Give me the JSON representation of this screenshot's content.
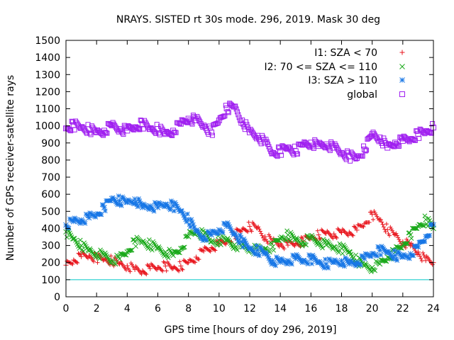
{
  "chart_data": {
    "type": "scatter",
    "title": "NRAYS. SISTED rt 30s mode. 296, 2019. Mask 30 deg",
    "xlabel": "GPS time [hours of doy 296, 2019]",
    "ylabel": "Number of GPS receiver-satellite rays",
    "xlim": [
      0,
      24
    ],
    "ylim": [
      0,
      1500
    ],
    "xticks": [
      0,
      2,
      4,
      6,
      8,
      10,
      12,
      14,
      16,
      18,
      20,
      22,
      24
    ],
    "yticks": [
      0,
      100,
      200,
      300,
      400,
      500,
      600,
      700,
      800,
      900,
      1000,
      1100,
      1200,
      1300,
      1400,
      1500
    ],
    "grid": false,
    "legend_position": "top-right",
    "reference_line": {
      "y": 100,
      "color": "#00c8c8"
    },
    "series": [
      {
        "name": "I1: SZA < 70",
        "color": "#e8141c",
        "marker": "plus",
        "x": [
          0,
          0.5,
          1,
          1.5,
          2,
          2.5,
          3,
          3.5,
          4,
          4.5,
          5,
          5.5,
          6,
          6.5,
          7,
          7.5,
          8,
          8.5,
          9,
          9.5,
          10,
          10.5,
          11,
          11.5,
          12,
          12.5,
          13,
          13.5,
          14,
          14.5,
          15,
          15.5,
          16,
          16.5,
          17,
          17.5,
          18,
          18.5,
          19,
          19.5,
          20,
          20.5,
          21,
          21.5,
          22,
          22.5,
          23,
          23.5,
          24
        ],
        "values": [
          185,
          215,
          235,
          240,
          228,
          218,
          212,
          192,
          182,
          160,
          152,
          165,
          172,
          180,
          168,
          180,
          200,
          232,
          268,
          288,
          308,
          322,
          362,
          392,
          412,
          402,
          352,
          322,
          312,
          302,
          312,
          325,
          345,
          362,
          372,
          368,
          375,
          378,
          390,
          428,
          482,
          452,
          392,
          362,
          322,
          298,
          262,
          212,
          200
        ]
      },
      {
        "name": "I2: 70 <= SZA <= 110",
        "color": "#1aa91a",
        "marker": "cross",
        "x": [
          0,
          0.5,
          1,
          1.5,
          2,
          2.5,
          3,
          3.5,
          4,
          4.5,
          5,
          5.5,
          6,
          6.5,
          7,
          7.5,
          8,
          8.5,
          9,
          9.5,
          10,
          10.5,
          11,
          11.5,
          12,
          12.5,
          13,
          13.5,
          14,
          14.5,
          15,
          15.5,
          16,
          16.5,
          17,
          17.5,
          18,
          18.5,
          19,
          19.5,
          20,
          20.5,
          21,
          21.5,
          22,
          22.5,
          23,
          23.5,
          24
        ],
        "values": [
          380,
          340,
          300,
          270,
          255,
          240,
          212,
          222,
          262,
          322,
          322,
          305,
          282,
          262,
          242,
          282,
          352,
          382,
          362,
          322,
          330,
          332,
          305,
          292,
          282,
          272,
          282,
          292,
          342,
          362,
          332,
          322,
          342,
          322,
          302,
          292,
          282,
          262,
          212,
          182,
          172,
          192,
          232,
          262,
          302,
          362,
          412,
          452,
          400
        ]
      },
      {
        "name": "I3: SZA > 110",
        "color": "#1877e6",
        "marker": "star",
        "x": [
          0,
          0.5,
          1,
          1.5,
          2,
          2.5,
          3,
          3.5,
          4,
          4.5,
          5,
          5.5,
          6,
          6.5,
          7,
          7.5,
          8,
          8.5,
          9,
          9.5,
          10,
          10.5,
          11,
          11.5,
          12,
          12.5,
          13,
          13.5,
          14,
          14.5,
          15,
          15.5,
          16,
          16.5,
          17,
          17.5,
          18,
          18.5,
          19,
          19.5,
          20,
          20.5,
          21,
          21.5,
          22,
          22.5,
          23,
          23.5,
          24
        ],
        "values": [
          420,
          440,
          450,
          462,
          482,
          522,
          575,
          562,
          552,
          572,
          522,
          532,
          522,
          542,
          532,
          502,
          452,
          382,
          352,
          362,
          392,
          412,
          372,
          322,
          282,
          272,
          252,
          212,
          202,
          212,
          222,
          212,
          222,
          202,
          192,
          202,
          212,
          192,
          202,
          222,
          252,
          272,
          262,
          242,
          232,
          252,
          292,
          352,
          420
        ]
      },
      {
        "name": "global",
        "color": "#a020f0",
        "marker": "square",
        "x": [
          0,
          0.5,
          1,
          1.5,
          2,
          2.5,
          3,
          3.5,
          4,
          4.5,
          5,
          5.5,
          6,
          6.5,
          7,
          7.5,
          8,
          8.5,
          9,
          9.5,
          10,
          10.5,
          11,
          11.5,
          12,
          12.5,
          13,
          13.5,
          14,
          14.5,
          15,
          15.5,
          16,
          16.5,
          17,
          17.5,
          18,
          18.5,
          19,
          19.5,
          20,
          20.5,
          21,
          21.5,
          22,
          22.5,
          23,
          23.5,
          24
        ],
        "values": [
          985,
          1005,
          990,
          980,
          962,
          972,
          1002,
          982,
          972,
          992,
          1012,
          982,
          982,
          952,
          972,
          1012,
          1042,
          1032,
          1002,
          962,
          1032,
          1102,
          1112,
          1032,
          962,
          942,
          902,
          842,
          852,
          872,
          852,
          892,
          902,
          882,
          892,
          872,
          842,
          822,
          812,
          862,
          952,
          932,
          872,
          902,
          912,
          922,
          952,
          962,
          990
        ]
      }
    ]
  }
}
